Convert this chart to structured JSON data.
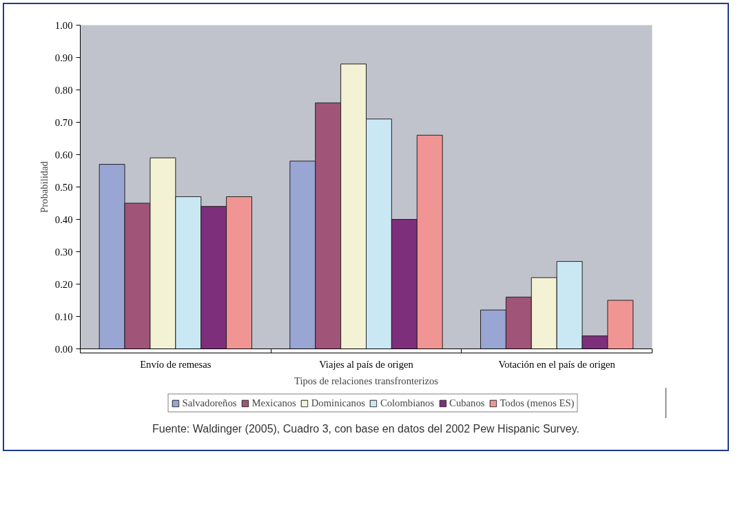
{
  "chart_data": {
    "type": "bar",
    "xlabel": "Tipos de relaciones transfronterizos",
    "ylabel": "Probabilidad",
    "categories": [
      "Envío de remesas",
      "Viajes al país de origen",
      "Votación en el país de origen"
    ],
    "series": [
      {
        "name": "Salvadoreños",
        "color": "#99a5d3",
        "values": [
          0.57,
          0.58,
          0.12
        ]
      },
      {
        "name": "Mexicanos",
        "color": "#a05478",
        "values": [
          0.45,
          0.76,
          0.16
        ]
      },
      {
        "name": "Dominicanos",
        "color": "#f3f2d4",
        "values": [
          0.59,
          0.88,
          0.22
        ]
      },
      {
        "name": "Colombianos",
        "color": "#c9e8f4",
        "values": [
          0.47,
          0.71,
          0.27
        ]
      },
      {
        "name": "Cubanos",
        "color": "#7d2f7b",
        "values": [
          0.44,
          0.4,
          0.04
        ]
      },
      {
        "name": "Todos (menos ES)",
        "color": "#f09593",
        "values": [
          0.47,
          0.66,
          0.15
        ]
      }
    ],
    "ylim": [
      0,
      1
    ],
    "yticks": [
      {
        "value": 0,
        "label": "0.00"
      },
      {
        "value": 0.1,
        "label": "0.10"
      },
      {
        "value": 0.2,
        "label": "0.20"
      },
      {
        "value": 0.3,
        "label": "0.30"
      },
      {
        "value": 0.4,
        "label": "0.40"
      },
      {
        "value": 0.5,
        "label": "0.50"
      },
      {
        "value": 0.6,
        "label": "0.60"
      },
      {
        "value": 0.7,
        "label": "0.70"
      },
      {
        "value": 0.8,
        "label": "0.80"
      },
      {
        "value": 0.9,
        "label": "0.90"
      },
      {
        "value": 1,
        "label": "1.00"
      }
    ],
    "grid": false,
    "legend": "bottom",
    "annotations": [
      "Fuente: Waldinger (2005), Cuadro 3,  con base en datos del 2002 Pew Hispanic Survey."
    ]
  }
}
